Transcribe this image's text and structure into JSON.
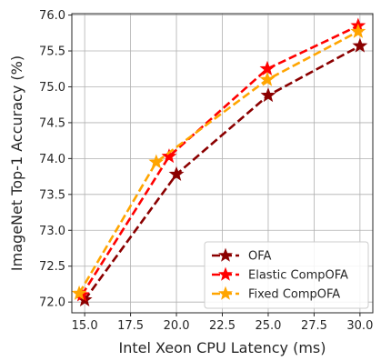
{
  "chart_data": {
    "type": "line",
    "title": "",
    "xlabel": "Intel Xeon CPU Latency (ms)",
    "ylabel": "ImageNet Top-1 Accuracy (%)",
    "xlim": [
      14.3,
      30.7
    ],
    "ylim": [
      71.85,
      76.02
    ],
    "xticks": [
      15.0,
      17.5,
      20.0,
      22.5,
      25.0,
      27.5,
      30.0
    ],
    "xtick_labels": [
      "15.0",
      "17.5",
      "20.0",
      "22.5",
      "25.0",
      "27.5",
      "30.0"
    ],
    "yticks": [
      72.0,
      72.5,
      73.0,
      73.5,
      74.0,
      74.5,
      75.0,
      75.5,
      76.0
    ],
    "ytick_labels": [
      "72.0",
      "72.5",
      "73.0",
      "73.5",
      "74.0",
      "74.5",
      "75.0",
      "75.5",
      "76.0"
    ],
    "grid": true,
    "legend_position": "bottom-right",
    "series": [
      {
        "name": "OFA",
        "color": "#8b0000",
        "marker": "star",
        "linestyle": "dashed",
        "x": [
          15.0,
          20.0,
          25.0,
          30.0
        ],
        "y": [
          72.03,
          73.78,
          74.88,
          75.57
        ]
      },
      {
        "name": "Elastic CompOFA",
        "color": "#ff0000",
        "marker": "star",
        "linestyle": "dashed",
        "x": [
          14.85,
          19.6,
          24.95,
          29.9
        ],
        "y": [
          72.1,
          74.03,
          75.25,
          75.85
        ]
      },
      {
        "name": "Fixed CompOFA",
        "color": "#ffa500",
        "marker": "star",
        "linestyle": "dashed",
        "x": [
          14.7,
          18.9,
          24.95,
          29.9
        ],
        "y": [
          72.12,
          73.95,
          75.1,
          75.77
        ]
      }
    ]
  }
}
